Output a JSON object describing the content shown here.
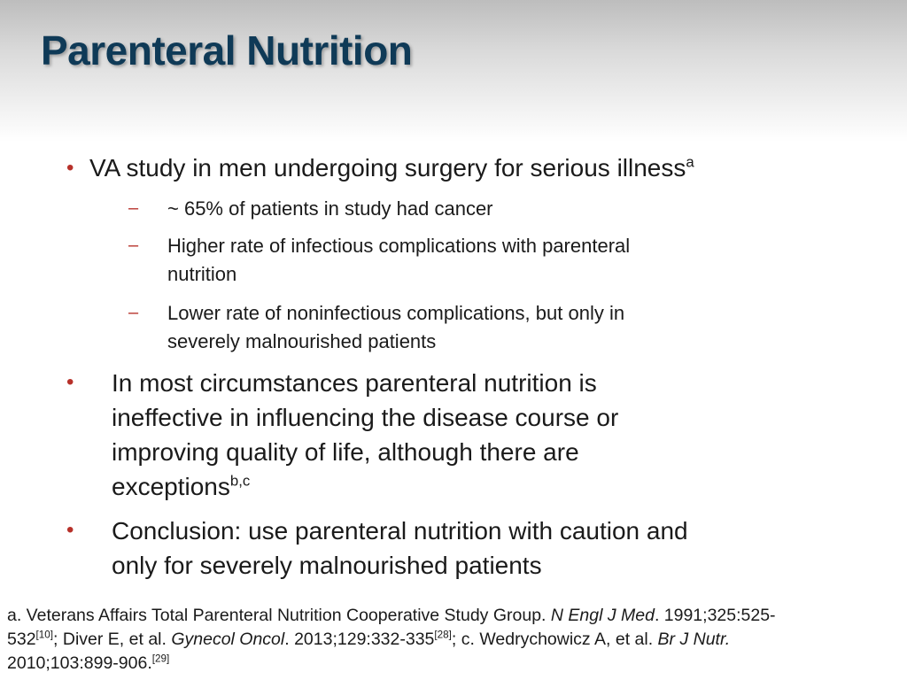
{
  "slide": {
    "title": "Parenteral Nutrition",
    "bullets": [
      {
        "text": "VA study in men undergoing surgery for serious illness",
        "sup": "a",
        "subs": [
          {
            "line1": "~ 65% of patients in study had cancer"
          },
          {
            "line1": "Higher rate of infectious complications with parenteral",
            "line2": "nutrition"
          },
          {
            "line1": "Lower rate of noninfectious complications, but only in",
            "line2": "severely malnourished patients"
          }
        ]
      },
      {
        "lines": [
          "In most circumstances parenteral nutrition is",
          "ineffective in influencing the disease course or",
          "improving quality of life, although there are",
          "exceptions"
        ],
        "sup": "b,c"
      },
      {
        "lines": [
          "Conclusion: use parenteral nutrition with caution and",
          "only for severely malnourished patients"
        ]
      }
    ],
    "bullet_symbol": "•",
    "dash_symbol": "–",
    "footnote": {
      "a_text": "a. Veterans Affairs Total Parenteral Nutrition Cooperative Study Group. ",
      "a_journal": "N Engl J Med",
      "a_cite": ". 1991;325:525-",
      "a_cite2": "532",
      "a_ref": "[10]",
      "b_text": "; Diver E, et al. ",
      "b_journal": "Gynecol Oncol",
      "b_cite": ". 2013;129:332-335",
      "b_ref": "[28]",
      "c_text": "; c. Wedrychowicz  A,  et al. ",
      "c_journal": "Br J Nutr.",
      "c_cite": "2010;103:899-906.",
      "c_ref": "[29]"
    },
    "colors": {
      "title": "#0f3a57",
      "bullet": "#b7312a",
      "text": "#1a1a1a"
    }
  }
}
